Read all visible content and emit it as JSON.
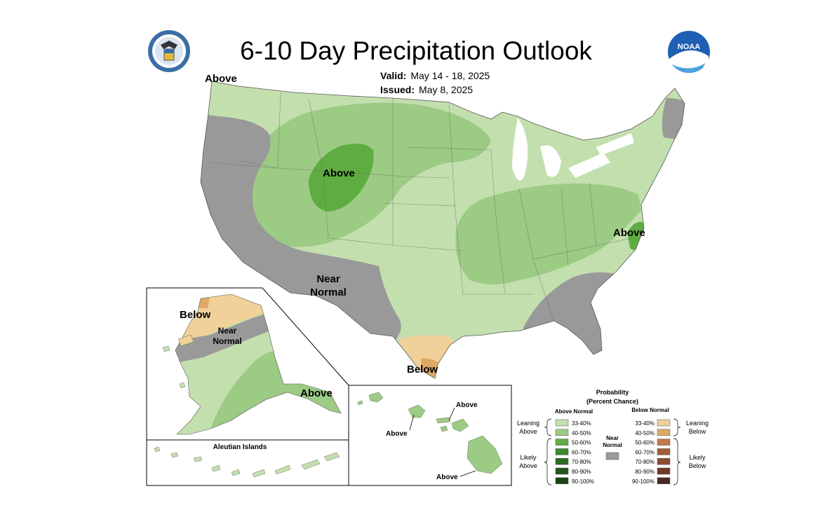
{
  "title": "6-10 Day Precipitation Outlook",
  "valid_label": "Valid:",
  "valid_value": "May 14 - 18, 2025",
  "issued_label": "Issued:",
  "issued_value": "May 8, 2025",
  "seal_icon": "doc-seal-icon",
  "noaa_logo_text": "NOAA",
  "colors": {
    "above_33_40": "#c3dfae",
    "above_40_50": "#9ccb84",
    "above_50_60": "#5fad42",
    "near_normal": "#999999",
    "below_33_40": "#efd199",
    "below_40_50": "#dfa965"
  },
  "labels": {
    "above_nw": "Above",
    "above_wy": "Above",
    "above_nc": "Above",
    "near_normal_line1": "Near",
    "near_normal_line2": "Normal",
    "below_tx": "Below",
    "ak_below": "Below",
    "ak_near_line1": "Near",
    "ak_near_line2": "Normal",
    "ak_above": "Above",
    "aleutian": "Aleutian Islands",
    "hi_above_1": "Above",
    "hi_above_2": "Above",
    "hi_above_3": "Above"
  },
  "legend": {
    "title_line1": "Probability",
    "title_line2": "(Percent Chance)",
    "above_head": "Above Normal",
    "below_head": "Below Normal",
    "near_head_line1": "Near",
    "near_head_line2": "Normal",
    "leaning_above_1": "Leaning",
    "leaning_above_2": "Above",
    "likely_above_1": "Likely",
    "likely_above_2": "Above",
    "leaning_below_1": "Leaning",
    "leaning_below_2": "Below",
    "likely_below_1": "Likely",
    "likely_below_2": "Below",
    "above_bins": [
      {
        "range": "33-40%",
        "color": "#c3dfae"
      },
      {
        "range": "40-50%",
        "color": "#9ccb84"
      },
      {
        "range": "50-60%",
        "color": "#5fad42"
      },
      {
        "range": "60-70%",
        "color": "#3b8a2c"
      },
      {
        "range": "70-80%",
        "color": "#2c6c22"
      },
      {
        "range": "80-90%",
        "color": "#23561b"
      },
      {
        "range": "90-100%",
        "color": "#1a4313"
      }
    ],
    "below_bins": [
      {
        "range": "33-40%",
        "color": "#efd199"
      },
      {
        "range": "40-50%",
        "color": "#dfa965"
      },
      {
        "range": "50-60%",
        "color": "#c07b45"
      },
      {
        "range": "60-70%",
        "color": "#a35d3a"
      },
      {
        "range": "70-80%",
        "color": "#8c4b33"
      },
      {
        "range": "80-90%",
        "color": "#6e3a25"
      },
      {
        "range": "90-100%",
        "color": "#4a2a25"
      }
    ],
    "near_color": "#999999"
  }
}
